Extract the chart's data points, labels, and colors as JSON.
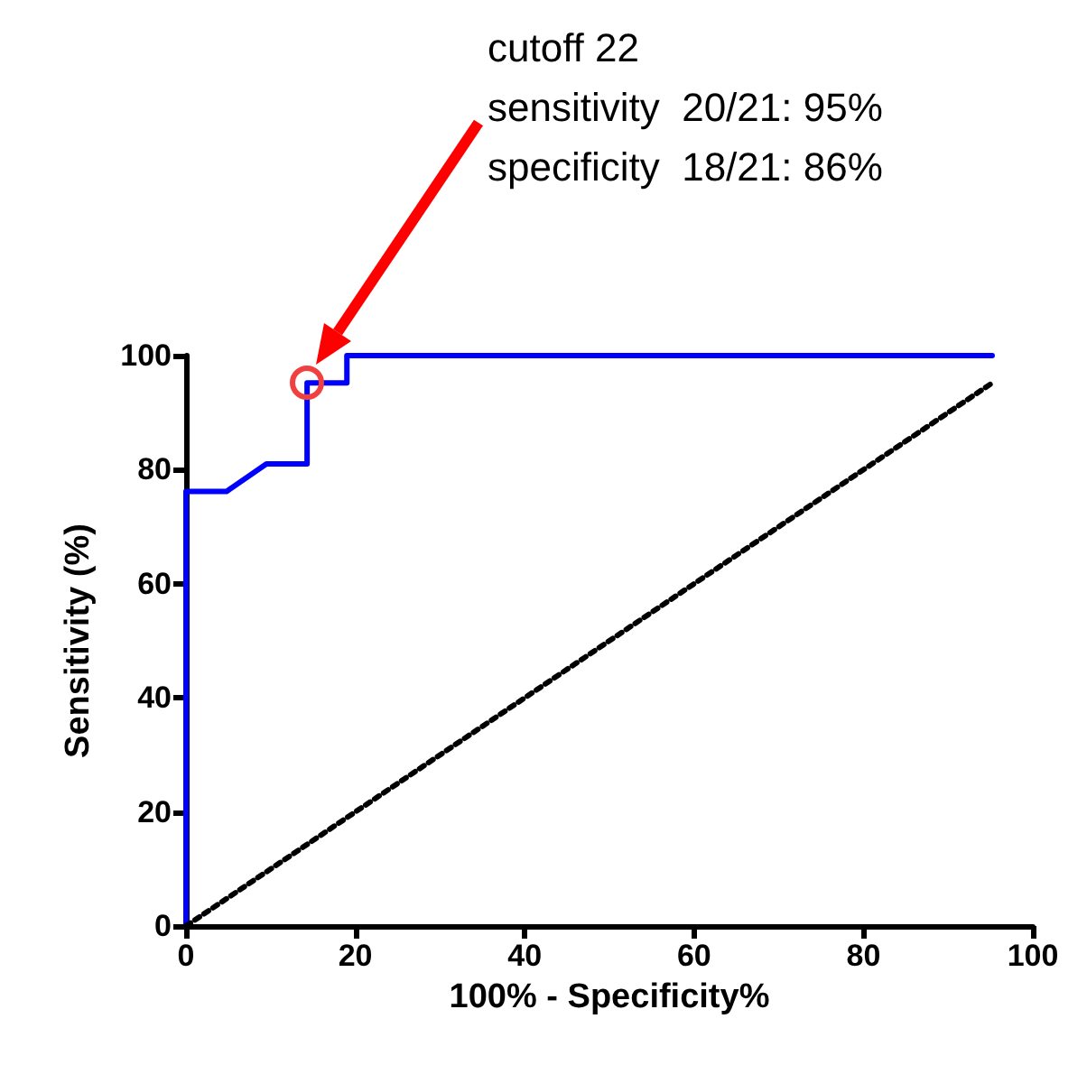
{
  "chart_data": {
    "type": "line",
    "xlabel": "100% - Specificity%",
    "ylabel": "Sensitivity (%)",
    "xlim": [
      0,
      100
    ],
    "ylim": [
      0,
      100
    ],
    "xticks": [
      0,
      20,
      40,
      60,
      80,
      100
    ],
    "yticks": [
      0,
      20,
      40,
      60,
      80,
      100
    ],
    "grid": false,
    "marker": "none",
    "series": [
      {
        "color": "#0000ff",
        "line_style": "solid",
        "x": [
          0,
          0,
          4.8,
          9.5,
          14.3,
          14.3,
          19,
          19,
          95.2
        ],
        "values": [
          0,
          76.2,
          76.2,
          81,
          81,
          95.2,
          95.2,
          100,
          100
        ]
      },
      {
        "color": "#000000",
        "line_style": "dotted",
        "x": [
          0,
          95.2
        ],
        "values": [
          0,
          95.2
        ]
      }
    ],
    "annotations": [
      "cutoff 22\nsensitivity  20/21: 95%\nspecificity  18/21: 86%"
    ]
  }
}
